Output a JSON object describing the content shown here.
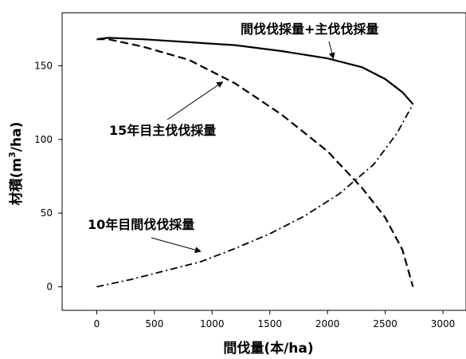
{
  "chart_data": {
    "type": "line",
    "title": "",
    "xlabel": "間伐量(本/ha)",
    "ylabel_main": "材積(m",
    "ylabel_sup": "3",
    "ylabel_tail": "/ha)",
    "xlim": [
      -300,
      3200
    ],
    "ylim": [
      -16,
      186
    ],
    "xticks": [
      0,
      500,
      1000,
      1500,
      2000,
      2500,
      3000
    ],
    "yticks": [
      0,
      50,
      100,
      150
    ],
    "grid": false,
    "series": [
      {
        "name": "間伐伐採量+主伐伐採量",
        "style": "solid",
        "points": [
          [
            0,
            168
          ],
          [
            100,
            169
          ],
          [
            400,
            168
          ],
          [
            800,
            166
          ],
          [
            1200,
            164
          ],
          [
            1600,
            160
          ],
          [
            2000,
            155
          ],
          [
            2300,
            149
          ],
          [
            2500,
            141
          ],
          [
            2650,
            132
          ],
          [
            2740,
            124
          ]
        ]
      },
      {
        "name": "15年目主伐伐採量",
        "style": "dashed",
        "points": [
          [
            0,
            168
          ],
          [
            100,
            168
          ],
          [
            400,
            163
          ],
          [
            800,
            154
          ],
          [
            1200,
            138
          ],
          [
            1600,
            117
          ],
          [
            2000,
            92
          ],
          [
            2300,
            67
          ],
          [
            2500,
            47
          ],
          [
            2650,
            25
          ],
          [
            2740,
            0
          ]
        ]
      },
      {
        "name": "10年目間伐伐採量",
        "style": "dashdot",
        "points": [
          [
            0,
            0
          ],
          [
            300,
            5
          ],
          [
            600,
            11
          ],
          [
            900,
            17
          ],
          [
            1200,
            26
          ],
          [
            1500,
            36
          ],
          [
            1800,
            48
          ],
          [
            2100,
            63
          ],
          [
            2400,
            83
          ],
          [
            2600,
            104
          ],
          [
            2740,
            124
          ]
        ]
      }
    ],
    "annotations": [
      {
        "text": "間伐伐採量+主伐伐採量",
        "target_x": 2050,
        "target_y": 155
      },
      {
        "text": "15年目主伐伐採量",
        "target_x": 1090,
        "target_y": 139
      },
      {
        "text": "10年目間伐伐採量",
        "target_x": 900,
        "target_y": 24
      }
    ]
  }
}
